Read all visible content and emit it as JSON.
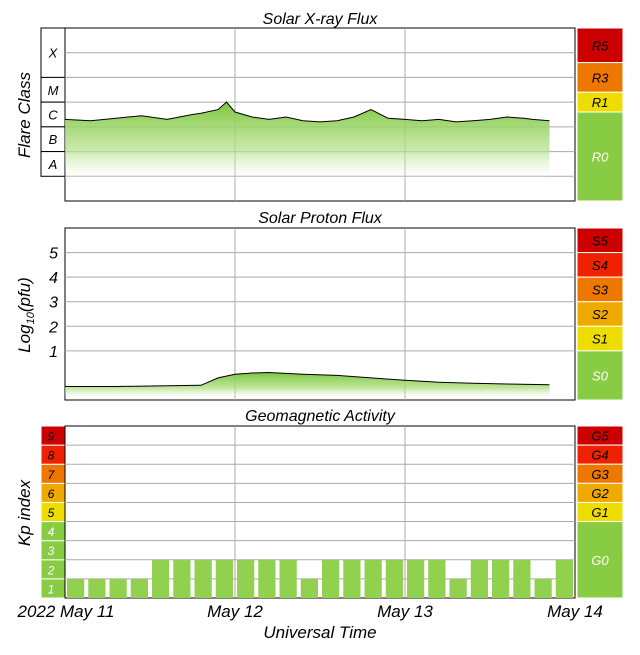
{
  "chart_data": [
    {
      "type": "area",
      "title": "Solar X-ray Flux",
      "ylabel": "Flare Class",
      "log_scale": true,
      "y_unit_exponent_range": [
        -9,
        -2
      ],
      "class_labels": [
        "X",
        "M",
        "C",
        "B",
        "A"
      ],
      "scale_labels": [
        "R5",
        "R3",
        "R1",
        "R0"
      ],
      "scale_colors": {
        "R5": "#cc0000",
        "R3": "#ee7700",
        "R1": "#eedd00",
        "R0": "#88cc44"
      },
      "x_days": [
        0,
        0.15,
        0.3,
        0.45,
        0.6,
        0.75,
        0.8,
        0.9,
        0.95,
        1.0,
        1.1,
        1.2,
        1.3,
        1.4,
        1.5,
        1.6,
        1.7,
        1.8,
        1.9,
        2.0,
        2.1,
        2.2,
        2.3,
        2.4,
        2.5,
        2.6,
        2.7,
        2.75,
        2.85
      ],
      "flux_log10": [
        -5.7,
        -5.75,
        -5.65,
        -5.55,
        -5.7,
        -5.5,
        -5.45,
        -5.3,
        -5.0,
        -5.4,
        -5.6,
        -5.7,
        -5.6,
        -5.75,
        -5.8,
        -5.75,
        -5.6,
        -5.3,
        -5.65,
        -5.7,
        -5.75,
        -5.7,
        -5.8,
        -5.75,
        -5.7,
        -5.6,
        -5.65,
        -5.7,
        -5.75
      ],
      "grid": true
    },
    {
      "type": "area",
      "title": "Solar Proton Flux",
      "ylabel": "Log10(pfu)",
      "ylabel_main": "Log",
      "ylabel_sub": "10",
      "ylabel_tail": "(pfu)",
      "ytick_labels": [
        "1",
        "2",
        "3",
        "4",
        "5"
      ],
      "scale_labels": [
        "S5",
        "S4",
        "S3",
        "S2",
        "S1",
        "S0"
      ],
      "scale_colors": {
        "S5": "#cc0000",
        "S4": "#ee2200",
        "S3": "#ee7700",
        "S2": "#eeaa00",
        "S1": "#eedd00",
        "S0": "#88cc44"
      },
      "x_days": [
        0,
        0.3,
        0.6,
        0.8,
        0.9,
        1.0,
        1.1,
        1.2,
        1.4,
        1.6,
        1.8,
        2.0,
        2.2,
        2.4,
        2.6,
        2.85
      ],
      "values_log10": [
        -0.45,
        -0.45,
        -0.42,
        -0.4,
        -0.1,
        0.05,
        0.1,
        0.12,
        0.05,
        0.0,
        -0.1,
        -0.2,
        -0.28,
        -0.32,
        -0.35,
        -0.38
      ],
      "ylim": [
        -1,
        6
      ],
      "grid": true
    },
    {
      "type": "bar",
      "title": "Geomagnetic Activity",
      "ylabel": "Kp index",
      "ylim": [
        0,
        9
      ],
      "kp_levels": [
        "1",
        "2",
        "3",
        "4",
        "5",
        "6",
        "7",
        "8",
        "9"
      ],
      "kp_level_colors": [
        "#88cc44",
        "#88cc44",
        "#88cc44",
        "#88cc44",
        "#eedd00",
        "#eeaa00",
        "#ee7700",
        "#ee2200",
        "#cc0000"
      ],
      "scale_labels": [
        "G5",
        "G4",
        "G3",
        "G2",
        "G1",
        "G0"
      ],
      "scale_colors": {
        "G5": "#cc0000",
        "G4": "#ee2200",
        "G3": "#ee7700",
        "G2": "#eeaa00",
        "G1": "#eedd00",
        "G0": "#88cc44"
      },
      "bar_interval_hours": 3,
      "values": [
        1,
        1,
        1,
        1,
        2,
        2,
        2,
        2,
        2,
        2,
        2,
        1,
        2,
        2,
        2,
        2,
        2,
        2,
        1,
        2,
        2,
        2,
        1,
        2
      ],
      "grid": true
    }
  ],
  "xaxis": {
    "tick_labels": [
      "2022 May 11",
      "May 12",
      "May 13",
      "May 14"
    ],
    "label": "Universal Time"
  }
}
